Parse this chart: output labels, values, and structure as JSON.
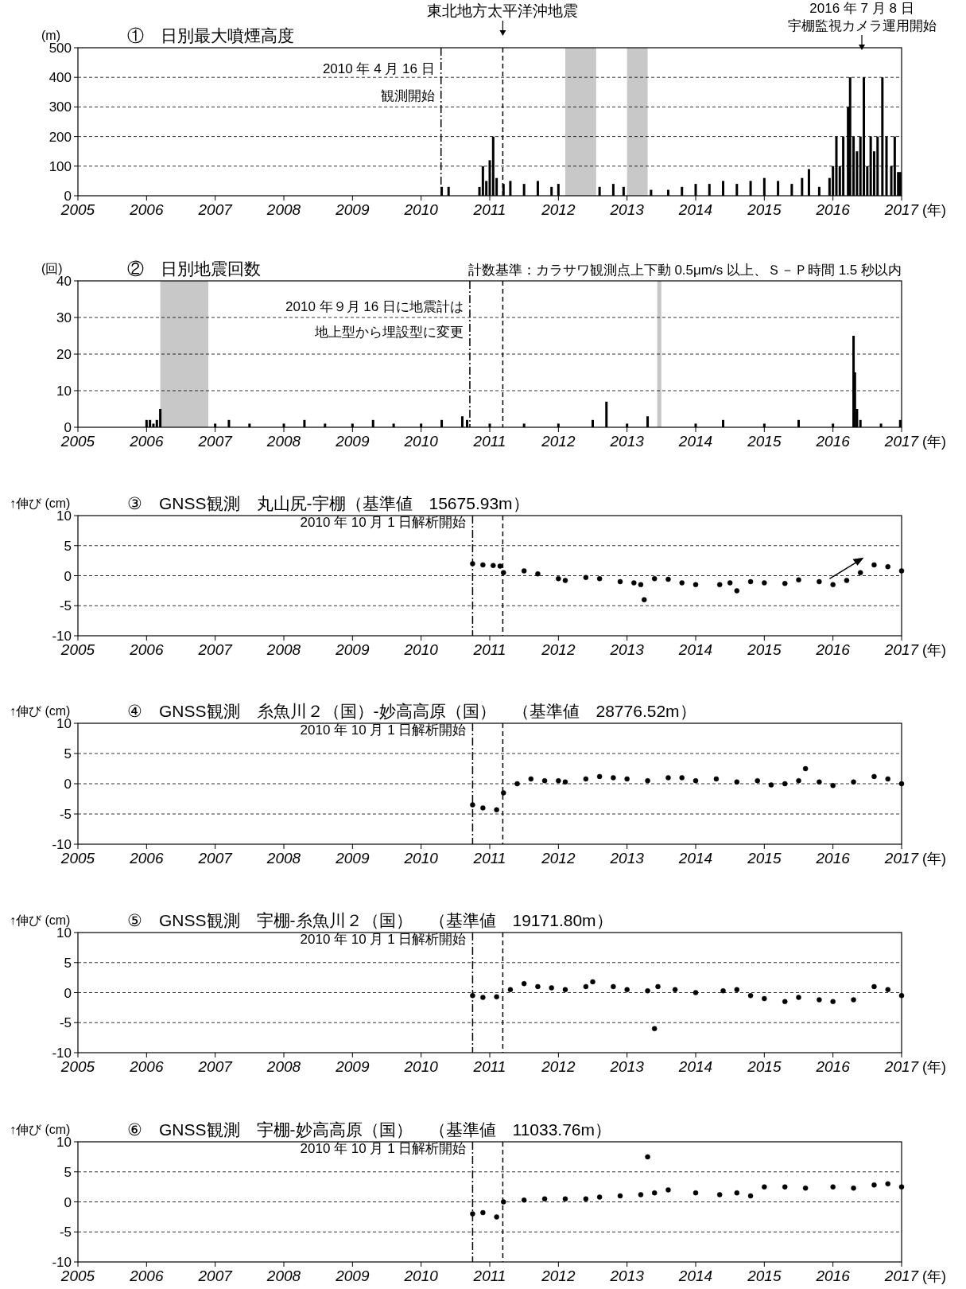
{
  "chart_data": [
    {
      "type": "bar",
      "title": "①　日別最大噴煙高度",
      "ylabel": "(m)",
      "xlabel": "(年)",
      "color": "#000000",
      "x": [
        2010.3,
        2010.4,
        2010.85,
        2010.9,
        2010.95,
        2011.0,
        2011.05,
        2011.1,
        2011.2,
        2011.3,
        2011.5,
        2011.7,
        2011.9,
        2012.0,
        2012.6,
        2012.8,
        2012.95,
        2013.35,
        2013.6,
        2013.8,
        2014.0,
        2014.2,
        2014.4,
        2014.6,
        2014.8,
        2015.0,
        2015.2,
        2015.4,
        2015.55,
        2015.65,
        2015.8,
        2015.95,
        2016.0,
        2016.05,
        2016.1,
        2016.15,
        2016.22,
        2016.25,
        2016.3,
        2016.35,
        2016.4,
        2016.45,
        2016.5,
        2016.55,
        2016.6,
        2016.65,
        2016.72,
        2016.78,
        2016.85,
        2016.9,
        2016.95,
        2016.98
      ],
      "values": [
        30,
        30,
        30,
        100,
        50,
        120,
        200,
        60,
        40,
        50,
        40,
        50,
        30,
        40,
        30,
        40,
        30,
        20,
        20,
        30,
        40,
        40,
        50,
        40,
        50,
        60,
        50,
        40,
        60,
        90,
        30,
        60,
        100,
        200,
        100,
        200,
        300,
        400,
        200,
        150,
        200,
        400,
        100,
        200,
        150,
        200,
        400,
        200,
        100,
        200,
        80,
        80
      ],
      "xlim": [
        2005,
        2017
      ],
      "xticks": [
        2005,
        2006,
        2007,
        2008,
        2009,
        2010,
        2011,
        2012,
        2013,
        2014,
        2015,
        2016,
        2017
      ],
      "ylim": [
        0,
        500
      ],
      "yticks": [
        0,
        100,
        200,
        300,
        400,
        500
      ],
      "grid": "y",
      "bands": [
        {
          "axis": "x",
          "from": 2012.1,
          "to": 2012.55,
          "color": "#c8c8c8"
        },
        {
          "axis": "x",
          "from": 2013.0,
          "to": 2013.3,
          "color": "#c8c8c8"
        }
      ],
      "ref_lines": [
        {
          "axis": "x",
          "value": 2011.19,
          "label": "東北地方太平洋沖地震",
          "line_style": "dashed"
        },
        {
          "axis": "x",
          "value": 2010.29,
          "line_style": "dotted"
        }
      ],
      "annotations": [
        {
          "text": "2010 年 4 月 16 日",
          "x": 2010.29,
          "y": 430
        },
        {
          "text": "観測開始",
          "x": 2010.29,
          "y": 340
        },
        "2016 年 7 月 8 日",
        "宇棚監視カメラ運用開始"
      ]
    },
    {
      "type": "bar",
      "title": "②　日別地震回数",
      "ylabel": "(回)",
      "xlabel": "(年)",
      "color": "#000000",
      "x": [
        2006.0,
        2006.05,
        2006.1,
        2006.15,
        2006.2,
        2007.0,
        2007.2,
        2007.5,
        2008.0,
        2008.3,
        2008.6,
        2009.0,
        2009.3,
        2009.6,
        2010.0,
        2010.3,
        2010.6,
        2010.67,
        2011.0,
        2011.5,
        2012.0,
        2012.5,
        2012.7,
        2013.0,
        2013.3,
        2014.0,
        2014.4,
        2015.0,
        2015.5,
        2016.0,
        2016.3,
        2016.32,
        2016.35,
        2016.4,
        2016.7,
        2016.98
      ],
      "values": [
        2,
        2,
        1,
        2,
        5,
        1,
        2,
        1,
        1,
        2,
        1,
        1,
        2,
        1,
        1,
        2,
        3,
        2,
        1,
        1,
        1,
        2,
        7,
        1,
        3,
        1,
        2,
        1,
        2,
        1,
        25,
        15,
        5,
        2,
        1,
        2
      ],
      "xlim": [
        2005,
        2017
      ],
      "xticks": [
        2005,
        2006,
        2007,
        2008,
        2009,
        2010,
        2011,
        2012,
        2013,
        2014,
        2015,
        2016,
        2017
      ],
      "ylim": [
        0,
        40
      ],
      "yticks": [
        0,
        10,
        20,
        30,
        40
      ],
      "grid": "y",
      "bands": [
        {
          "axis": "x",
          "from": 2006.2,
          "to": 2006.9,
          "color": "#c8c8c8"
        },
        {
          "axis": "x",
          "from": 2013.44,
          "to": 2013.5,
          "color": "#c8c8c8"
        }
      ],
      "ref_lines": [
        {
          "axis": "x",
          "value": 2011.19,
          "line_style": "dashed"
        },
        {
          "axis": "x",
          "value": 2010.71,
          "line_style": "dotted"
        }
      ],
      "annotations": [
        "計数基準：カラサワ観測点上下動 0.5μm/s 以上、Ｓ－Ｐ時間 1.5 秒以内",
        {
          "text": "2010 年９月 16 日に地震計は",
          "x": 2010.71,
          "y": 33
        },
        {
          "text": "地上型から埋設型に変更",
          "x": 2010.71,
          "y": 26
        }
      ]
    },
    {
      "type": "scatter",
      "title": "③　GNSS観測　丸山尻-宇棚（基準値　15675.93m）",
      "ylabel": "↑伸び (cm)",
      "xlabel": "(年)",
      "color": "#000000",
      "marker": "circle",
      "x": [
        2010.75,
        2010.9,
        2011.05,
        2011.15,
        2011.2,
        2011.5,
        2011.7,
        2012.0,
        2012.1,
        2012.4,
        2012.6,
        2012.9,
        2013.1,
        2013.2,
        2013.25,
        2013.4,
        2013.6,
        2013.8,
        2014.0,
        2014.35,
        2014.5,
        2014.6,
        2014.8,
        2015.0,
        2015.3,
        2015.5,
        2015.8,
        2016.0,
        2016.2,
        2016.4,
        2016.6,
        2016.8,
        2017.0
      ],
      "values": [
        2,
        1.8,
        1.7,
        1.6,
        0.5,
        0.8,
        0.3,
        -0.5,
        -0.8,
        -0.3,
        -0.5,
        -1.0,
        -1.2,
        -1.5,
        -4,
        -0.5,
        -0.6,
        -1.2,
        -1.5,
        -1.5,
        -1.2,
        -2.5,
        -1.0,
        -1.2,
        -1.3,
        -0.7,
        -1.0,
        -1.5,
        -0.8,
        0.5,
        1.8,
        1.5,
        0.8
      ],
      "xlim": [
        2005,
        2017
      ],
      "xticks": [
        2005,
        2006,
        2007,
        2008,
        2009,
        2010,
        2011,
        2012,
        2013,
        2014,
        2015,
        2016,
        2017
      ],
      "ylim": [
        -10,
        10
      ],
      "yticks": [
        -10,
        -5,
        0,
        5,
        10
      ],
      "grid": "y",
      "ref_lines": [
        {
          "axis": "x",
          "value": 2011.19,
          "line_style": "dashed"
        },
        {
          "axis": "x",
          "value": 2010.75,
          "line_style": "dotted"
        }
      ],
      "annotations": [
        {
          "text": "2010 年 10 月 1 日解析開始",
          "x": 2010.75,
          "y": 9
        }
      ]
    },
    {
      "type": "scatter",
      "title": "④　GNSS観測　糸魚川２（国）-妙高高原（国）　（基準値　28776.52m）",
      "ylabel": "↑伸び (cm)",
      "xlabel": "(年)",
      "color": "#000000",
      "marker": "circle",
      "x": [
        2010.75,
        2010.9,
        2011.1,
        2011.2,
        2011.4,
        2011.6,
        2011.8,
        2012.0,
        2012.1,
        2012.4,
        2012.6,
        2012.8,
        2013.0,
        2013.3,
        2013.6,
        2013.8,
        2014.0,
        2014.3,
        2014.6,
        2014.9,
        2015.1,
        2015.3,
        2015.5,
        2015.6,
        2015.8,
        2016.0,
        2016.3,
        2016.6,
        2016.8,
        2017.0
      ],
      "values": [
        -3.5,
        -4,
        -4.3,
        -1.5,
        0,
        0.8,
        0.5,
        0.5,
        0.3,
        0.8,
        1.2,
        1.0,
        0.8,
        0.5,
        1.0,
        1.0,
        0.5,
        0.8,
        0.3,
        0.5,
        -0.2,
        0,
        0.5,
        2.5,
        0.3,
        -0.3,
        0.3,
        1.2,
        0.8,
        0
      ],
      "xlim": [
        2005,
        2017
      ],
      "xticks": [
        2005,
        2006,
        2007,
        2008,
        2009,
        2010,
        2011,
        2012,
        2013,
        2014,
        2015,
        2016,
        2017
      ],
      "ylim": [
        -10,
        10
      ],
      "yticks": [
        -10,
        -5,
        0,
        5,
        10
      ],
      "grid": "y",
      "ref_lines": [
        {
          "axis": "x",
          "value": 2011.19,
          "line_style": "dashed"
        },
        {
          "axis": "x",
          "value": 2010.75,
          "line_style": "dotted"
        }
      ],
      "annotations": [
        {
          "text": "2010 年 10 月 1 日解析開始",
          "x": 2010.75,
          "y": 9
        }
      ]
    },
    {
      "type": "scatter",
      "title": "⑤　GNSS観測　宇棚-糸魚川２（国）　（基準値　19171.80m）",
      "ylabel": "↑伸び (cm)",
      "xlabel": "(年)",
      "color": "#000000",
      "marker": "circle",
      "x": [
        2010.75,
        2010.9,
        2011.1,
        2011.3,
        2011.5,
        2011.7,
        2011.9,
        2012.1,
        2012.4,
        2012.5,
        2012.8,
        2013.0,
        2013.3,
        2013.4,
        2013.45,
        2013.7,
        2014.0,
        2014.4,
        2014.6,
        2014.8,
        2015.0,
        2015.3,
        2015.5,
        2015.8,
        2016.0,
        2016.3,
        2016.6,
        2016.8,
        2017.0
      ],
      "values": [
        -0.5,
        -0.8,
        -0.7,
        0.5,
        1.5,
        1.0,
        0.8,
        0.5,
        1.0,
        1.8,
        1.0,
        0.5,
        0.3,
        -6,
        1.0,
        0.5,
        0,
        0.3,
        0.5,
        -0.5,
        -1.0,
        -1.5,
        -0.8,
        -1.2,
        -1.5,
        -1.2,
        1.0,
        0.5,
        -0.5
      ],
      "xlim": [
        2005,
        2017
      ],
      "xticks": [
        2005,
        2006,
        2007,
        2008,
        2009,
        2010,
        2011,
        2012,
        2013,
        2014,
        2015,
        2016,
        2017
      ],
      "ylim": [
        -10,
        10
      ],
      "yticks": [
        -10,
        -5,
        0,
        5,
        10
      ],
      "grid": "y",
      "ref_lines": [
        {
          "axis": "x",
          "value": 2011.19,
          "line_style": "dashed"
        },
        {
          "axis": "x",
          "value": 2010.75,
          "line_style": "dotted"
        }
      ],
      "annotations": [
        {
          "text": "2010 年 10 月 1 日解析開始",
          "x": 2010.75,
          "y": 9
        }
      ]
    },
    {
      "type": "scatter",
      "title": "⑥　GNSS観測　宇棚-妙高高原（国）　（基準値　11033.76m）",
      "ylabel": "↑伸び (cm)",
      "xlabel": "(年)",
      "color": "#000000",
      "marker": "circle",
      "x": [
        2010.75,
        2010.9,
        2011.1,
        2011.2,
        2011.5,
        2011.8,
        2012.1,
        2012.4,
        2012.6,
        2012.9,
        2013.2,
        2013.3,
        2013.4,
        2013.6,
        2014.0,
        2014.35,
        2014.6,
        2014.8,
        2015.0,
        2015.3,
        2015.6,
        2016.0,
        2016.3,
        2016.6,
        2016.8,
        2017.0
      ],
      "values": [
        -2,
        -1.8,
        -2.5,
        0,
        0.3,
        0.5,
        0.5,
        0.5,
        0.8,
        1.0,
        1.2,
        7.5,
        1.5,
        2.0,
        1.5,
        1.2,
        1.5,
        1.0,
        2.5,
        2.5,
        2.3,
        2.5,
        2.3,
        2.8,
        3.0,
        2.5
      ],
      "xlim": [
        2005,
        2017
      ],
      "xticks": [
        2005,
        2006,
        2007,
        2008,
        2009,
        2010,
        2011,
        2012,
        2013,
        2014,
        2015,
        2016,
        2017
      ],
      "ylim": [
        -10,
        10
      ],
      "yticks": [
        -10,
        -5,
        0,
        5,
        10
      ],
      "grid": "y",
      "ref_lines": [
        {
          "axis": "x",
          "value": 2011.19,
          "line_style": "dashed"
        },
        {
          "axis": "x",
          "value": 2010.75,
          "line_style": "dotted"
        }
      ],
      "annotations": [
        {
          "text": "2010 年 10 月 1 日解析開始",
          "x": 2010.75,
          "y": 9
        }
      ]
    }
  ]
}
